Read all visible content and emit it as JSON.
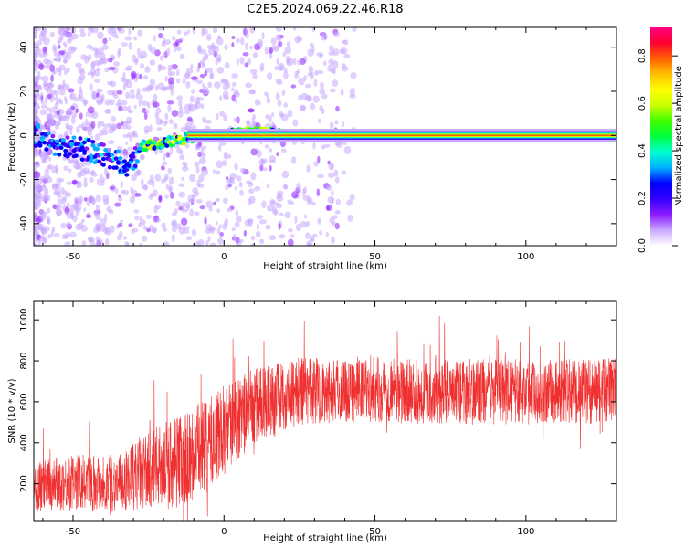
{
  "figure": {
    "title": "C2E5.2024.069.22.46.R18"
  },
  "chart_data": [
    {
      "type": "heatmap",
      "xlabel": "Height of straight line (km)",
      "ylabel": "Frequency (Hz)",
      "xlim": [
        -63,
        130
      ],
      "ylim": [
        -50,
        49
      ],
      "xticks": [
        -50,
        0,
        50,
        100
      ],
      "yticks": [
        -40,
        -20,
        0,
        20,
        40
      ],
      "description_of_values": "Normalized spectral amplitude vs height and frequency. Main ridge near 0 Hz.",
      "ridge_profile": [
        {
          "x": -60,
          "y": -3
        },
        {
          "x": -50,
          "y": -5
        },
        {
          "x": -42,
          "y": -8
        },
        {
          "x": -35,
          "y": -12
        },
        {
          "x": -31,
          "y": -15
        },
        {
          "x": -28,
          "y": -5
        },
        {
          "x": -22,
          "y": -4
        },
        {
          "x": -15,
          "y": -2
        },
        {
          "x": -8,
          "y": 0
        },
        {
          "x": 0,
          "y": 0
        },
        {
          "x": 5,
          "y": 1
        },
        {
          "x": 10,
          "y": 2
        },
        {
          "x": 15,
          "y": 1
        },
        {
          "x": 20,
          "y": 0
        },
        {
          "x": 130,
          "y": 0
        }
      ],
      "grid": false,
      "colorbar": {
        "label": "Normalized spectral amplitude",
        "range": [
          0,
          0.92
        ],
        "ticks": [
          "0.0",
          "0.2",
          "0.4",
          "0.6",
          "0.8"
        ],
        "tick_values": [
          0.0,
          0.2,
          0.4,
          0.6,
          0.8
        ],
        "colors": [
          "#ffffff",
          "#c9a8ff",
          "#8c1aff",
          "#3300ff",
          "#0000ff",
          "#00b0ff",
          "#00ffd0",
          "#00ff40",
          "#40ff00",
          "#c8ff00",
          "#ffff00",
          "#ffc000",
          "#ff6000",
          "#ff0030",
          "#ff0080"
        ]
      }
    },
    {
      "type": "line",
      "xlabel": "Height of straight line (km)",
      "ylabel": "SNR (10 * v/v)",
      "xlim": [
        -63,
        130
      ],
      "ylim": [
        20,
        1090
      ],
      "xticks": [
        -50,
        0,
        50,
        100
      ],
      "yticks": [
        200,
        400,
        600,
        800,
        1000
      ],
      "series": [
        {
          "color": "#f03030",
          "x": [
            -63,
            -55,
            -45,
            -35,
            -28,
            -22,
            -18,
            -12,
            -8,
            -4,
            0,
            5,
            10,
            15,
            20,
            25,
            30,
            40,
            50,
            60,
            70,
            80,
            90,
            100,
            110,
            120,
            130
          ],
          "center": [
            180,
            200,
            210,
            200,
            250,
            280,
            300,
            330,
            360,
            400,
            460,
            520,
            580,
            610,
            630,
            650,
            660,
            660,
            660,
            650,
            650,
            650,
            650,
            650,
            650,
            650,
            660
          ],
          "spread": [
            120,
            130,
            140,
            140,
            180,
            200,
            220,
            240,
            240,
            230,
            220,
            200,
            190,
            180,
            170,
            170,
            170,
            160,
            160,
            160,
            160,
            160,
            160,
            160,
            160,
            160,
            160
          ]
        }
      ],
      "grid": false
    }
  ]
}
